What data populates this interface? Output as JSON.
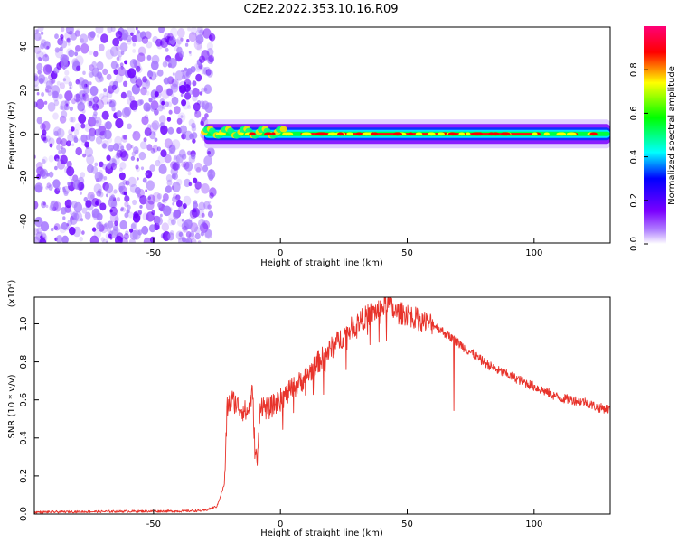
{
  "title": "C2E2.2022.353.10.16.R09",
  "colors": {
    "line": "#e8332b",
    "noise_purple": "#7a2cff",
    "axis": "#000000"
  },
  "chart_data": [
    {
      "type": "heatmap",
      "title": "C2E2.2022.353.10.16.R09",
      "xlabel": "Height of straight line (km)",
      "ylabel": "Frequency (Hz)",
      "xlim": [
        -97,
        130
      ],
      "ylim": [
        -50,
        49
      ],
      "xticks": [
        "-50",
        "0",
        "50",
        "100"
      ],
      "yticks": [
        "-40",
        "-20",
        "0",
        "20",
        "40"
      ],
      "grid": false,
      "noise_region_x": [
        -97,
        -28
      ],
      "signal_frequency_hz": 0,
      "colorbar": {
        "label": "Normalized spectral amplitude",
        "range": [
          0.0,
          1.0
        ],
        "ticks": [
          "0.0",
          "0.2",
          "0.4",
          "0.6",
          "0.8"
        ],
        "colormap": [
          "#ffffff",
          "#7b00ff",
          "#0000ff",
          "#00ffff",
          "#00ff00",
          "#ffff00",
          "#ff0000",
          "#ff0066"
        ]
      }
    },
    {
      "type": "line",
      "xlabel": "Height of straight line (km)",
      "ylabel": "SNR (10 * v/v)",
      "ylabel_exponent": "(x10⁴)",
      "xlim": [
        -97,
        130
      ],
      "ylim": [
        0,
        1.14
      ],
      "xticks": [
        "-50",
        "0",
        "50",
        "100"
      ],
      "yticks": [
        "0.0",
        "0.2",
        "0.4",
        "0.6",
        "0.8",
        "1.0"
      ],
      "grid": false,
      "series": [
        {
          "x": [
            -97,
            -80,
            -60,
            -40,
            -30,
            -25,
            -22,
            -21,
            -19,
            -16,
            -13,
            -11,
            -10,
            -9,
            -8,
            -5,
            0,
            5,
            10,
            15,
            20,
            25,
            30,
            35,
            40,
            42,
            45,
            50,
            55,
            60,
            65,
            70,
            75,
            80,
            85,
            90,
            95,
            100,
            105,
            110,
            115,
            120,
            125,
            130
          ],
          "values": [
            0.01,
            0.012,
            0.014,
            0.015,
            0.018,
            0.04,
            0.16,
            0.56,
            0.6,
            0.56,
            0.53,
            0.64,
            0.32,
            0.28,
            0.58,
            0.55,
            0.6,
            0.66,
            0.72,
            0.8,
            0.87,
            0.94,
            1.0,
            1.05,
            1.08,
            1.12,
            1.06,
            1.05,
            1.02,
            1.0,
            0.95,
            0.9,
            0.85,
            0.8,
            0.76,
            0.73,
            0.7,
            0.67,
            0.64,
            0.61,
            0.6,
            0.59,
            0.56,
            0.55
          ]
        }
      ]
    }
  ]
}
